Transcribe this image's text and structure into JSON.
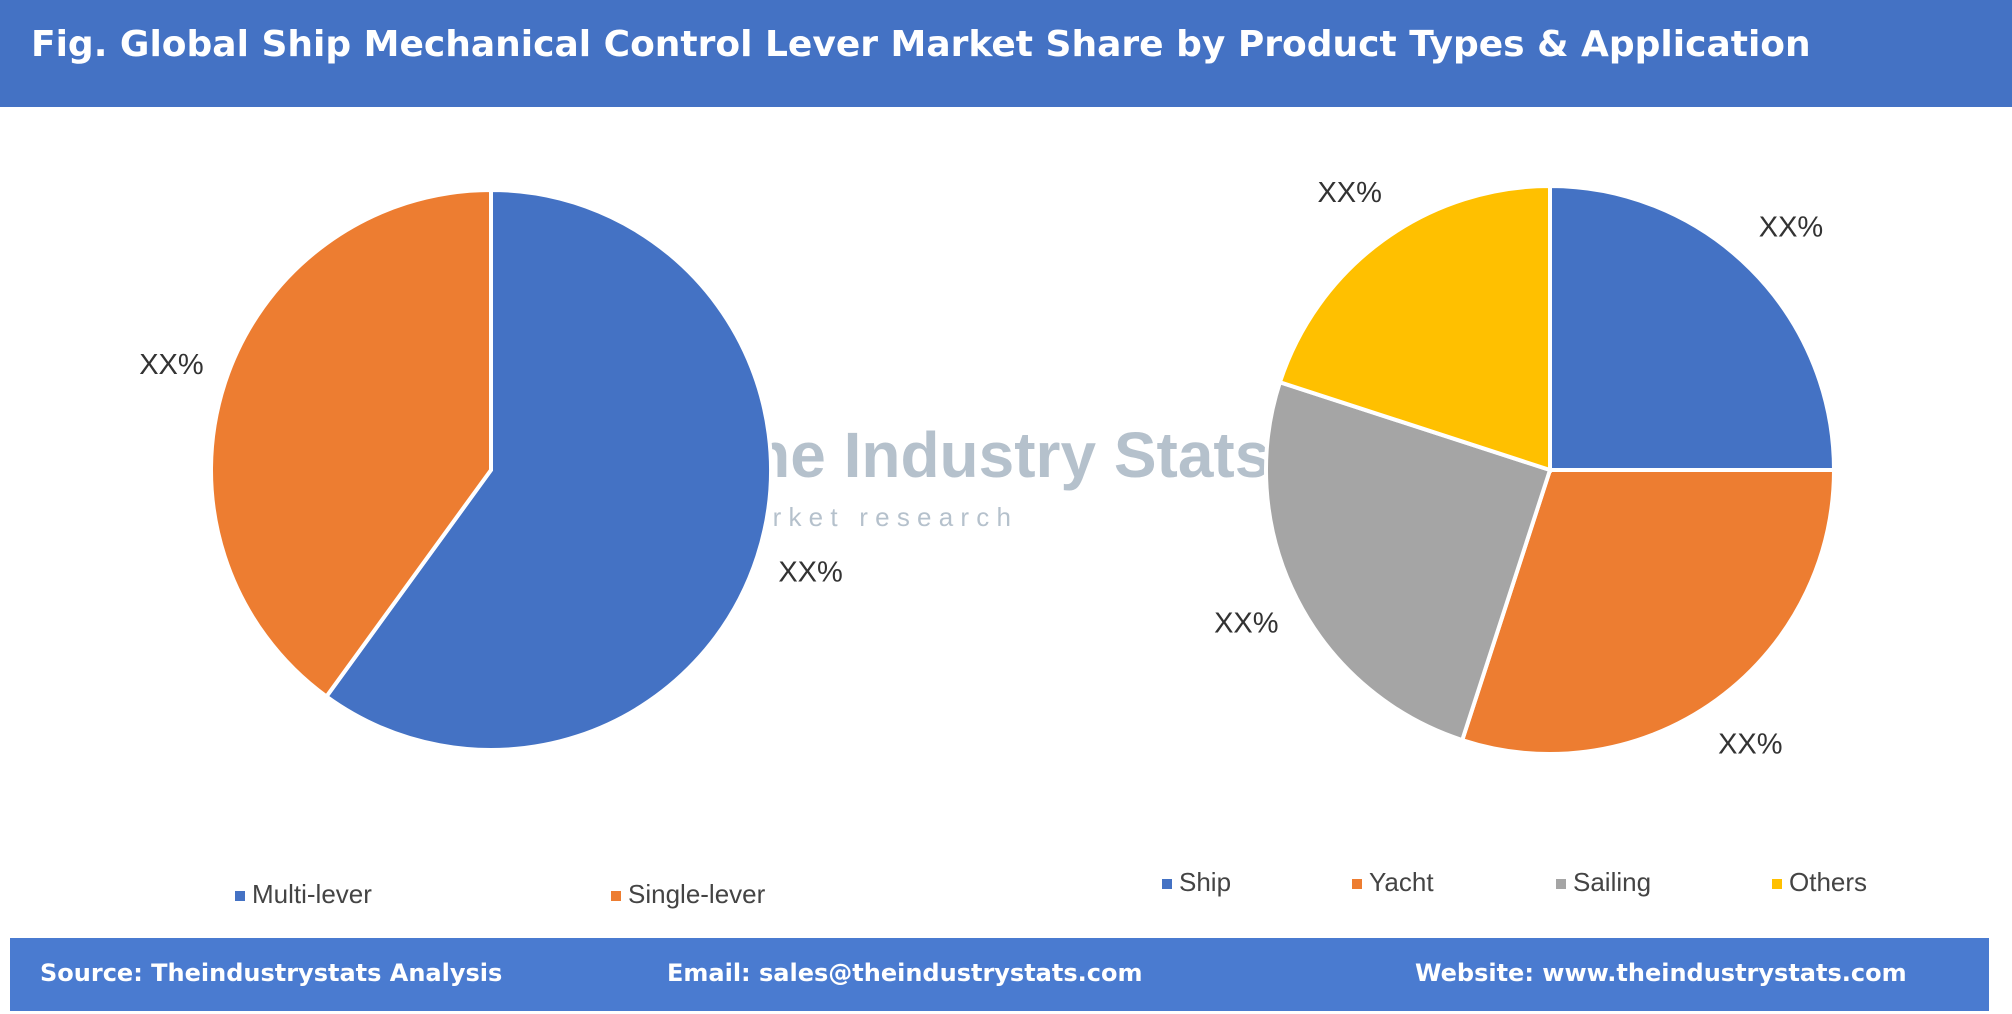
{
  "title": "Fig. Global Ship Mechanical Control Lever Market Share by Product Types & Application",
  "watermark": {
    "name": "The Industry Stats",
    "tagline": "m a r k e t   r e s e a r c h"
  },
  "footer": {
    "source": "Source: Theindustrystats Analysis",
    "email": "Email: sales@theindustrystats.com",
    "website": "Website: www.theindustrystats.com"
  },
  "chart_data": [
    {
      "type": "pie",
      "categories": [
        "Multi-lever",
        "Single-lever"
      ],
      "values": [
        60,
        40
      ],
      "value_labels": [
        "XX%",
        "XX%"
      ],
      "colors": [
        "#4472c4",
        "#ed7d31"
      ]
    },
    {
      "type": "pie",
      "categories": [
        "Ship",
        "Yacht",
        "Sailing",
        "Others"
      ],
      "values": [
        25,
        30,
        25,
        20
      ],
      "value_labels": [
        "XX%",
        "XX%",
        "XX%",
        "XX%"
      ],
      "colors": [
        "#4472c4",
        "#ed7d31",
        "#a5a5a5",
        "#ffc000"
      ]
    }
  ]
}
